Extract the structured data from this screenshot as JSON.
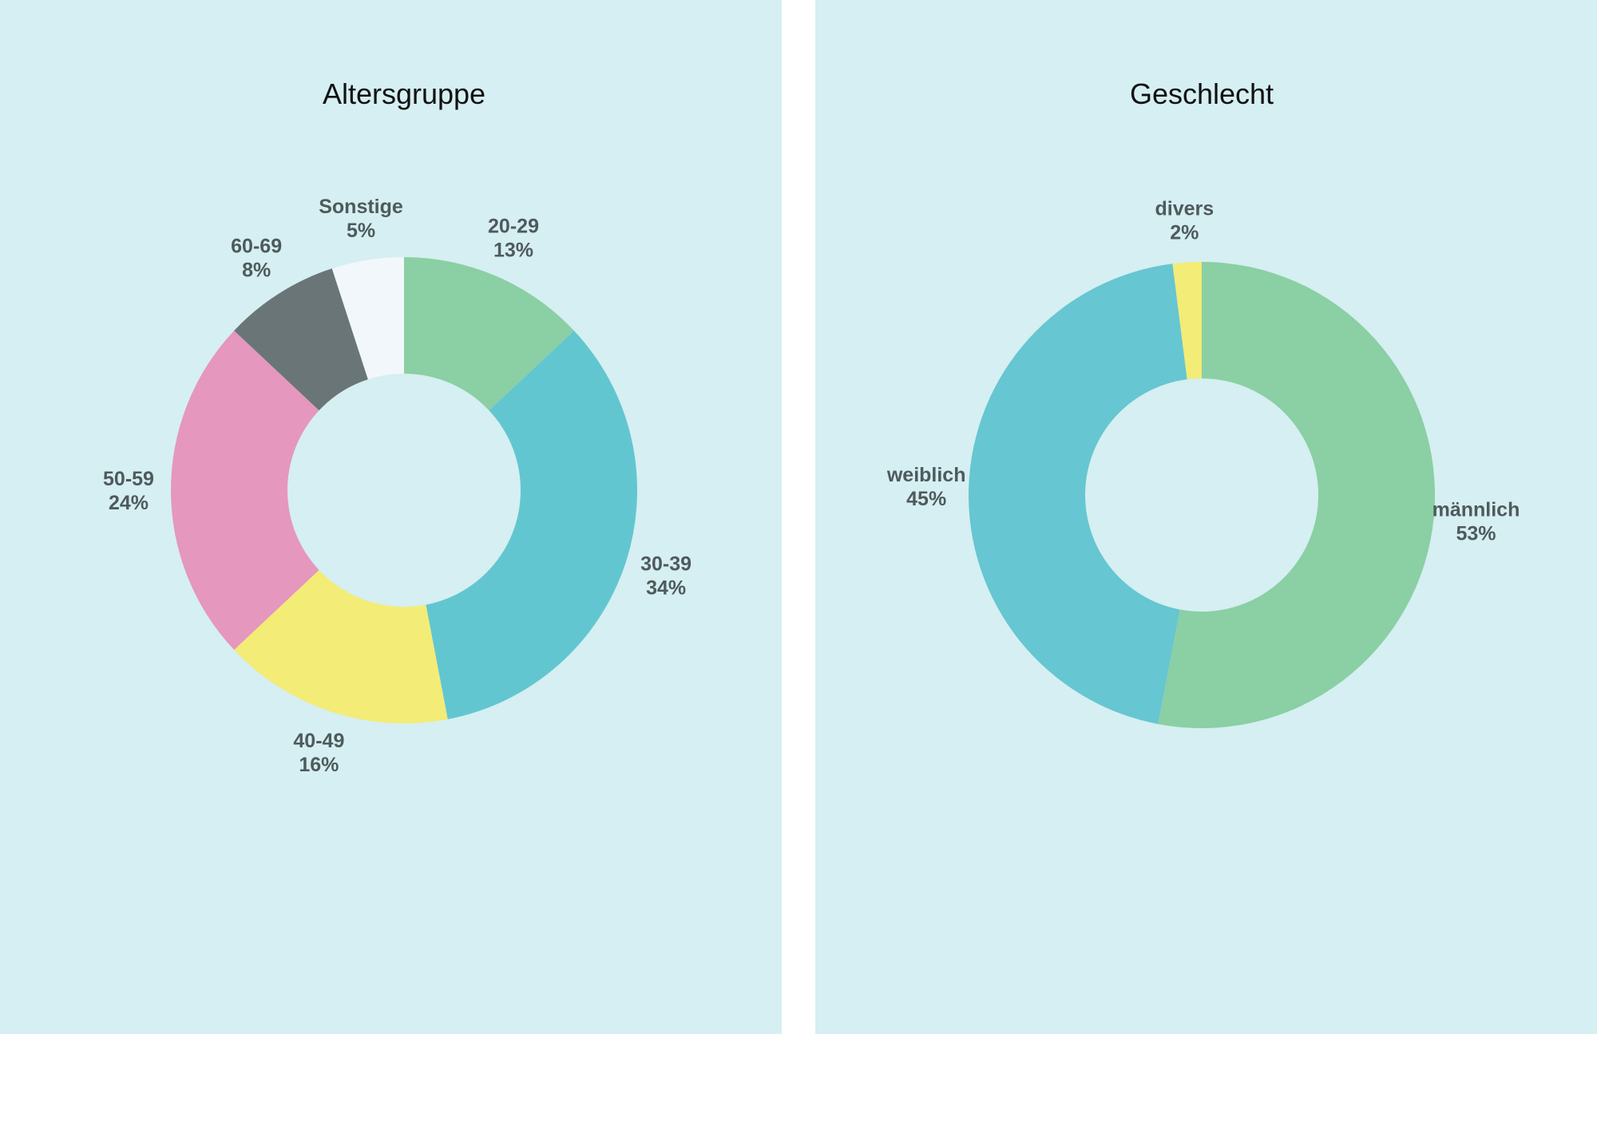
{
  "chart_data": [
    {
      "type": "pie",
      "title": "Altersgruppe",
      "categories": [
        "20-29",
        "30-39",
        "40-49",
        "50-59",
        "60-69",
        "Sonstige"
      ],
      "values": [
        13,
        34,
        16,
        24,
        8,
        5
      ],
      "value_labels": [
        "13%",
        "34%",
        "16%",
        "24%",
        "8%",
        "5%"
      ],
      "colors": [
        "#8bcfa4",
        "#62c6d0",
        "#f3ec76",
        "#e597be",
        "#6a7578",
        "#f1f7fa"
      ]
    },
    {
      "type": "pie",
      "title": "Geschlecht",
      "categories": [
        "männlich",
        "weiblich",
        "divers"
      ],
      "values": [
        53,
        45,
        2
      ],
      "value_labels": [
        "53%",
        "45%",
        "2%"
      ],
      "colors": [
        "#8bcfa4",
        "#66c6d1",
        "#f3ec76"
      ]
    }
  ]
}
